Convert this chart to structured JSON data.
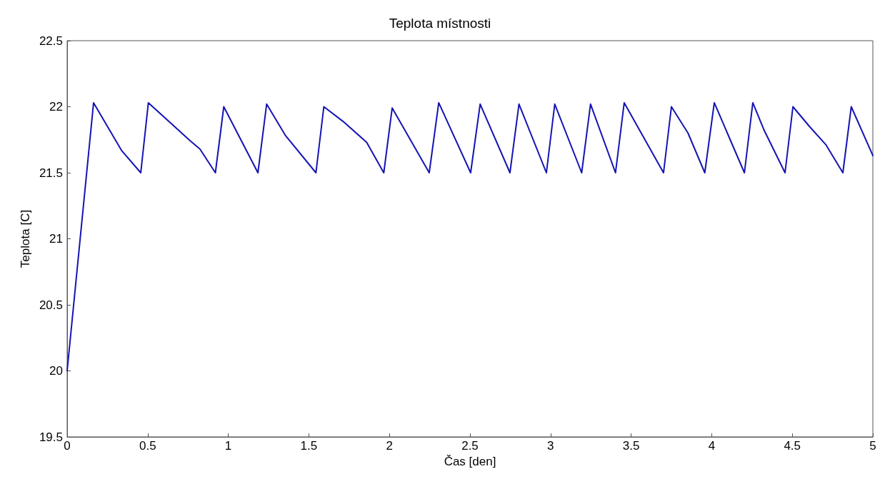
{
  "chart_data": {
    "type": "line",
    "title": "Teplota místnosti",
    "xlabel": "Čas [den]",
    "ylabel": "Teplota [C]",
    "xlim": [
      0,
      5
    ],
    "xticks": [
      0,
      0.5,
      1,
      1.5,
      2,
      2.5,
      3,
      3.5,
      4,
      4.5,
      5
    ],
    "ylim": [
      19.5,
      22.5
    ],
    "yticks": [
      19.5,
      20,
      20.5,
      21,
      21.5,
      22,
      22.5
    ],
    "grid": false,
    "marker": "none",
    "line_style": "solid",
    "series": [
      {
        "color": "#1414b4",
        "x": [
          0,
          0.164,
          0.337,
          0.457,
          0.504,
          0.765,
          0.824,
          0.92,
          0.972,
          1.184,
          1.238,
          1.356,
          1.544,
          1.593,
          1.711,
          1.859,
          1.965,
          2.017,
          2.247,
          2.306,
          2.504,
          2.563,
          2.748,
          2.804,
          2.974,
          3.026,
          3.193,
          3.248,
          3.403,
          3.457,
          3.701,
          3.75,
          3.853,
          3.957,
          4.016,
          4.203,
          4.255,
          4.326,
          4.455,
          4.504,
          4.607,
          4.71,
          4.814,
          4.866,
          5
        ],
        "values": [
          20,
          22.03,
          21.67,
          21.5,
          22.03,
          21.74,
          21.68,
          21.5,
          22,
          21.5,
          22.02,
          21.78,
          21.5,
          22,
          21.89,
          21.73,
          21.5,
          21.99,
          21.5,
          22.03,
          21.5,
          22.02,
          21.5,
          22.02,
          21.5,
          22.02,
          21.5,
          22.02,
          21.5,
          22.03,
          21.5,
          22,
          21.8,
          21.5,
          22.03,
          21.5,
          22.03,
          21.82,
          21.5,
          22,
          21.85,
          21.71,
          21.5,
          22,
          21.63
        ]
      }
    ]
  }
}
